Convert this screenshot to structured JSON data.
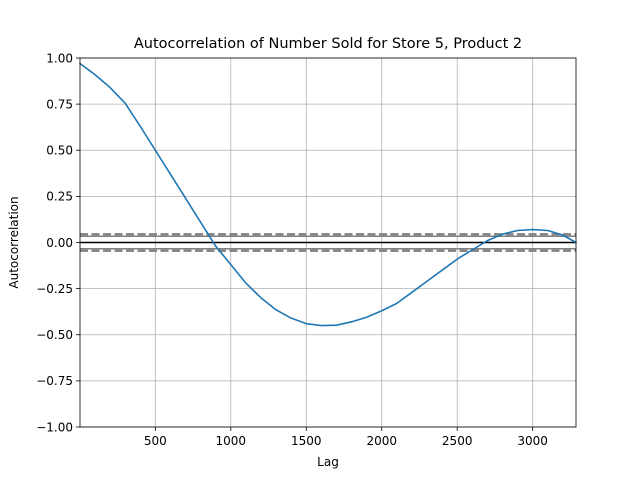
{
  "chart_data": {
    "type": "line",
    "title": "Autocorrelation of Number Sold for Store 5, Product 2",
    "xlabel": "Lag",
    "ylabel": "Autocorrelation",
    "xlim": [
      1,
      3287
    ],
    "ylim": [
      -1.0,
      1.0
    ],
    "xticks": [
      500,
      1000,
      1500,
      2000,
      2500,
      3000
    ],
    "xtick_labels": [
      "500",
      "1000",
      "1500",
      "2000",
      "2500",
      "3000"
    ],
    "yticks": [
      -1.0,
      -0.75,
      -0.5,
      -0.25,
      0.0,
      0.25,
      0.5,
      0.75,
      1.0
    ],
    "ytick_labels": [
      "−1.00",
      "−0.75",
      "−0.50",
      "−0.25",
      "0.00",
      "0.25",
      "0.50",
      "0.75",
      "1.00"
    ],
    "grid": true,
    "zero_line": 0.0,
    "confidence_bands": {
      "ci95": [
        0.0342,
        -0.0342
      ],
      "ci99": [
        0.0449,
        -0.0449
      ]
    },
    "series": [
      {
        "color": "#1f77b4",
        "x": [
          1,
          100,
          200,
          300,
          400,
          500,
          600,
          700,
          800,
          900,
          1000,
          1100,
          1200,
          1300,
          1400,
          1500,
          1600,
          1700,
          1800,
          1900,
          2000,
          2100,
          2200,
          2300,
          2400,
          2500,
          2600,
          2700,
          2800,
          2900,
          3000,
          3100,
          3200,
          3287
        ],
        "y": [
          0.97,
          0.91,
          0.84,
          0.755,
          0.63,
          0.5,
          0.37,
          0.24,
          0.11,
          -0.02,
          -0.12,
          -0.22,
          -0.3,
          -0.365,
          -0.41,
          -0.44,
          -0.45,
          -0.448,
          -0.43,
          -0.405,
          -0.37,
          -0.33,
          -0.27,
          -0.21,
          -0.15,
          -0.09,
          -0.04,
          0.01,
          0.045,
          0.065,
          0.07,
          0.065,
          0.04,
          0.0
        ]
      }
    ]
  }
}
